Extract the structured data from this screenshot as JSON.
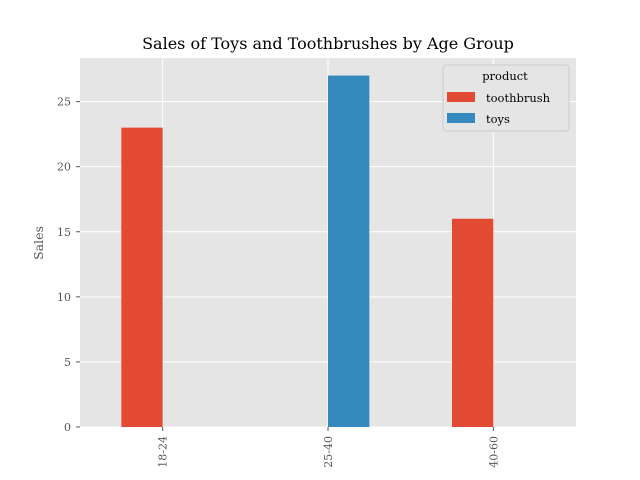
{
  "chart_data": {
    "type": "bar",
    "title": "Sales of Toys and Toothbrushes by Age Group",
    "xlabel": "",
    "ylabel": "Sales",
    "categories": [
      "18-24",
      "25-40",
      "40-60"
    ],
    "series": [
      {
        "name": "toothbrush",
        "color": "#E24A33",
        "values": [
          23,
          0,
          16
        ]
      },
      {
        "name": "toys",
        "color": "#348ABD",
        "values": [
          0,
          27,
          0
        ]
      }
    ],
    "ylim": [
      0,
      28.35
    ],
    "yticks": [
      "0",
      "5",
      "10",
      "15",
      "20",
      "25"
    ],
    "grid": true,
    "legend": {
      "title": "product",
      "position": "top-right"
    },
    "background": "#E5E5E5"
  }
}
